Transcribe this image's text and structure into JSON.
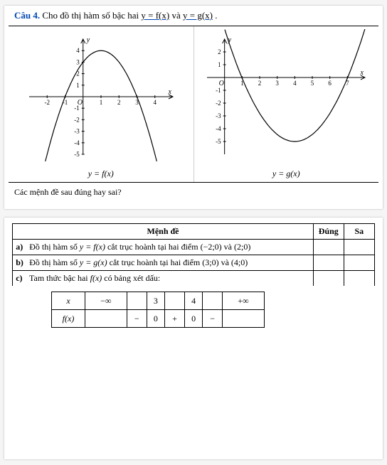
{
  "heading": {
    "cau_label": "Câu 4.",
    "prompt_pre": "Cho đồ thị hàm số bậc hai ",
    "fx_eq": "y = f(x)",
    "and_word": " và ",
    "gx_eq": "y = g(x)",
    "suffix": " ."
  },
  "charts": {
    "left": {
      "label": "y = f(x)",
      "xlim": [
        -3,
        5
      ],
      "ylim": [
        -5,
        5
      ],
      "xticks": [
        -2,
        -1,
        1,
        2,
        3,
        4
      ],
      "yticks": [
        -5,
        -4,
        -3,
        -2,
        -1,
        1,
        2,
        3,
        4
      ],
      "axis_labels": {
        "x": "x",
        "y": "y",
        "origin": "O"
      },
      "parabola": {
        "vertex": [
          1,
          4
        ],
        "a": -1,
        "color": "#000000",
        "width": 1.2
      },
      "grid": false,
      "background_color": "#ffffff"
    },
    "right": {
      "label": "y = g(x)",
      "xlim": [
        -1,
        8
      ],
      "ylim": [
        -6,
        3
      ],
      "xticks": [
        1,
        2,
        3,
        4,
        5,
        6,
        7
      ],
      "yticks": [
        -5,
        -4,
        -3,
        -2,
        -1,
        1,
        2
      ],
      "axis_labels": {
        "x": "x",
        "y": "y",
        "origin": "O"
      },
      "parabola": {
        "vertex": [
          4,
          -5
        ],
        "a": 0.55,
        "color": "#000000",
        "width": 1.2
      },
      "grid": false,
      "background_color": "#ffffff"
    }
  },
  "question_line": "Các mệnh đề sau đúng hay sai?",
  "table": {
    "header_md": "Mệnh đề",
    "header_dung": "Đúng",
    "header_sai": "Sa",
    "rows": [
      {
        "label": "a)",
        "text_pre": "Đồ thị hàm số ",
        "fx": "y = f(x)",
        "text_mid": " cắt trục hoành tại hai điểm ",
        "pts": "(−2;0) và (2;0)"
      },
      {
        "label": "b)",
        "text_pre": "Đồ thị hàm số ",
        "fx": "y = g(x)",
        "text_mid": " cắt trục hoành tại hai điểm ",
        "pts": "(3;0) và (4;0)"
      },
      {
        "label": "c)",
        "text_pre": "Tam thức bậc hai ",
        "fx": "f(x)",
        "text_mid": " có bảng xét dấu:",
        "pts": ""
      }
    ]
  },
  "sign_table": {
    "row1_label": "x",
    "row1_vals": [
      "−∞",
      "",
      "3",
      "",
      "4",
      "",
      "+∞"
    ],
    "row2_label": "f(x)",
    "row2_vals": [
      "",
      "−",
      "0",
      "+",
      "0",
      "−",
      ""
    ]
  }
}
